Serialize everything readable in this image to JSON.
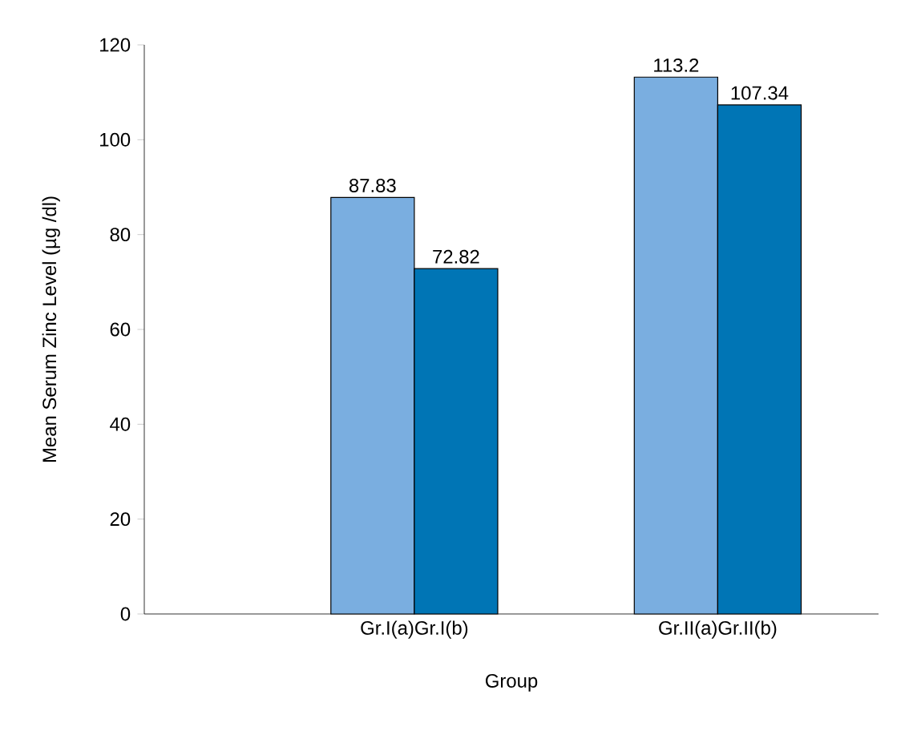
{
  "chart_data": {
    "type": "bar",
    "xlabel": "Group",
    "ylabel": "Mean Serum Zinc Level (µg /dl)",
    "categories": [
      "Gr.I(a)Gr.I(b)",
      "Gr.II(a)Gr.II(b)"
    ],
    "series": [
      {
        "color": "#7aaee0",
        "values": [
          87.83,
          113.2
        ]
      },
      {
        "color": "#0075b5",
        "values": [
          72.82,
          107.34
        ]
      }
    ],
    "ylim": [
      0,
      120
    ],
    "yticks": [
      0,
      20,
      40,
      60,
      80,
      100,
      120
    ],
    "data_labels": true
  }
}
